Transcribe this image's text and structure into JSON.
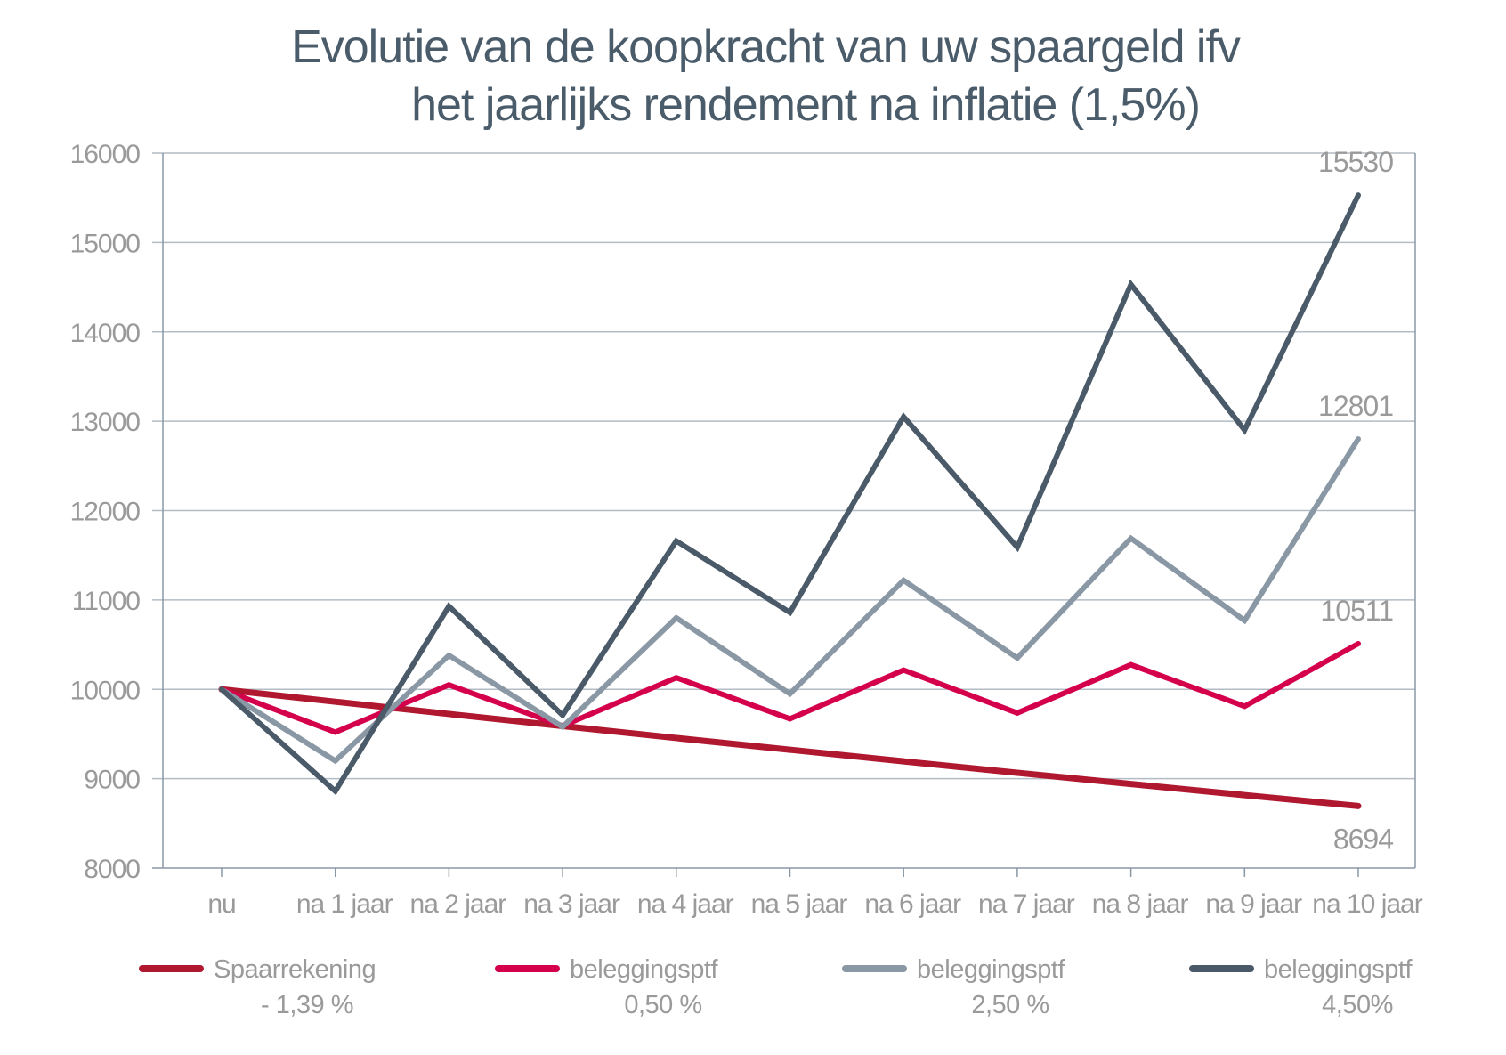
{
  "chart_data": {
    "type": "line",
    "title": [
      "Evolutie van de koopkracht van uw spaargeld ifv",
      "het jaarlijks rendement na inflatie (1,5%)"
    ],
    "xlabel": "",
    "ylabel": "",
    "categories": [
      "nu",
      "na 1 jaar",
      "na 2 jaar",
      "na 3 jaar",
      "na 4 jaar",
      "na 5 jaar",
      "na 6 jaar",
      "na 7 jaar",
      "na 8 jaar",
      "na 9 jaar",
      "na 10 jaar"
    ],
    "ylim": [
      8000,
      16000
    ],
    "yticks": [
      "8000",
      "9000",
      "10000",
      "11000",
      "12000",
      "13000",
      "14000",
      "15000",
      "16000"
    ],
    "grid": true,
    "legend_position": "bottom",
    "series": [
      {
        "name": "Spaarrekening",
        "sub": "- 1,39 %",
        "color": "#b0182f",
        "values": [
          10000,
          9861,
          9724,
          9589,
          9455,
          9324,
          9194,
          9066,
          8940,
          8816,
          8694
        ],
        "end_label": "8694"
      },
      {
        "name": "beleggingsptf",
        "sub": "0,50 %",
        "color": "#d4004b",
        "values": [
          10000,
          9520,
          10050,
          9590,
          10130,
          9670,
          10215,
          9735,
          10275,
          9810,
          10511
        ],
        "end_label": "10511"
      },
      {
        "name": "beleggingsptf",
        "sub": "2,50 %",
        "color": "#8a98a5",
        "values": [
          10000,
          9200,
          10380,
          9580,
          10800,
          9950,
          11220,
          10350,
          11690,
          10770,
          12801
        ],
        "end_label": "12801"
      },
      {
        "name": "beleggingsptf",
        "sub": "4,50%",
        "color": "#4a5a68",
        "values": [
          10000,
          8860,
          10930,
          9710,
          11660,
          10860,
          13050,
          11590,
          14530,
          12900,
          15530
        ],
        "end_label": "15530"
      }
    ]
  }
}
